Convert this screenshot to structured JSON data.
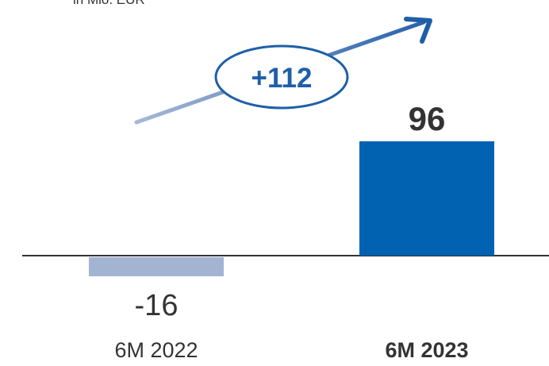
{
  "unit_label": "in Mio. EUR",
  "delta_label": "+112",
  "colors": {
    "bar_2022": "#a3b3d2",
    "bar_2023": "#0062b1",
    "accent": "#1f5fa8",
    "axis": "#333333",
    "text": "#333333"
  },
  "chart_data": {
    "type": "bar",
    "categories": [
      "6M 2022",
      "6M 2023"
    ],
    "values": [
      -16,
      96
    ],
    "value_labels": [
      "-16",
      "96"
    ],
    "title": "",
    "xlabel": "",
    "ylabel": "in Mio. EUR",
    "annotations": [
      {
        "text": "+112",
        "type": "growth-arrow"
      }
    ]
  }
}
